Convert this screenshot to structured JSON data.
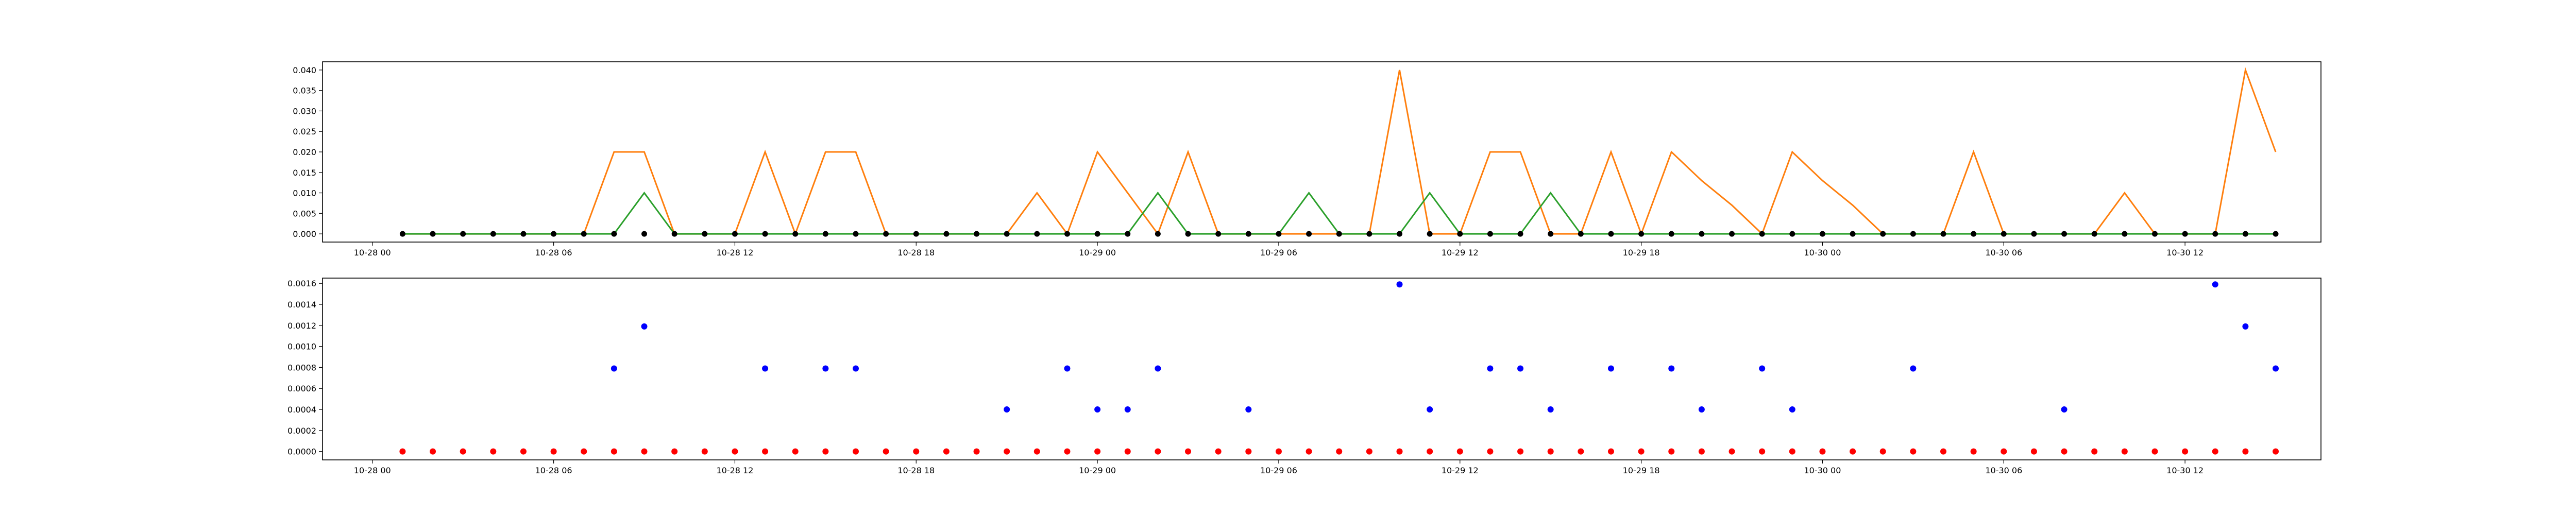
{
  "chart_data": [
    {
      "type": "line",
      "title": "",
      "xlabel": "",
      "ylabel": "",
      "x_tick_labels": [
        "10-28 00",
        "10-28 06",
        "10-28 12",
        "10-28 18",
        "10-29 00",
        "10-29 06",
        "10-29 12",
        "10-29 18",
        "10-30 00",
        "10-30 06",
        "10-30 12"
      ],
      "y_tick_labels": [
        "0.000",
        "0.005",
        "0.010",
        "0.015",
        "0.020",
        "0.025",
        "0.030",
        "0.035",
        "0.040"
      ],
      "xlim_hours": [
        -1.65,
        64.5
      ],
      "ylim": [
        -0.002,
        0.042
      ],
      "grid": false,
      "x_hours": [
        1,
        2,
        3,
        4,
        5,
        6,
        7,
        8,
        9,
        10,
        11,
        12,
        13,
        14,
        15,
        16,
        17,
        18,
        19,
        20,
        21,
        22,
        23,
        24,
        25,
        26,
        27,
        28,
        29,
        30,
        31,
        32,
        33,
        34,
        35,
        36,
        37,
        38,
        39,
        40,
        41,
        42,
        43,
        44,
        45,
        46,
        47,
        48,
        49,
        50,
        51,
        52,
        53,
        54,
        55,
        56,
        57,
        58,
        59,
        60,
        61,
        62,
        63
      ],
      "series": [
        {
          "color": "#ff7f0e",
          "style": "line",
          "values": [
            0,
            0,
            0,
            0,
            0,
            0,
            0,
            0.02,
            0.02,
            0,
            0,
            0,
            0.02,
            0,
            0.02,
            0.02,
            0,
            0,
            0,
            0,
            0,
            0.01,
            0,
            0.02,
            0.01,
            0,
            0.02,
            0,
            0,
            0,
            0,
            0,
            0,
            0.04,
            0,
            0,
            0.02,
            0.02,
            0,
            0,
            0.02,
            0,
            0.02,
            0.013,
            0.007,
            0,
            0.02,
            0.013,
            0.007,
            0,
            0,
            0,
            0.02,
            0,
            0,
            0,
            0,
            0.01,
            0,
            0,
            0,
            0.04,
            0.02
          ]
        },
        {
          "color": "#2ca02c",
          "style": "line",
          "values": [
            0,
            0,
            0,
            0,
            0,
            0,
            0,
            0,
            0.01,
            0,
            0,
            0,
            0,
            0,
            0,
            0,
            0,
            0,
            0,
            0,
            0,
            0,
            0,
            0,
            0,
            0.01,
            0,
            0,
            0,
            0,
            0.01,
            0,
            0,
            0,
            0.01,
            0,
            0,
            0,
            0.01,
            0,
            0,
            0,
            0,
            0,
            0,
            0,
            0,
            0,
            0,
            0,
            0,
            0,
            0,
            0,
            0,
            0,
            0,
            0,
            0,
            0,
            0,
            0,
            0
          ]
        },
        {
          "color": "#000000",
          "style": "markers",
          "values": [
            0,
            0,
            0,
            0,
            0,
            0,
            0,
            0,
            0,
            0,
            0,
            0,
            0,
            0,
            0,
            0,
            0,
            0,
            0,
            0,
            0,
            0,
            0,
            0,
            0,
            0,
            0,
            0,
            0,
            0,
            0,
            0,
            0,
            0,
            0,
            0,
            0,
            0,
            0,
            0,
            0,
            0,
            0,
            0,
            0,
            0,
            0,
            0,
            0,
            0,
            0,
            0,
            0,
            0,
            0,
            0,
            0,
            0,
            0,
            0,
            0,
            0,
            0
          ]
        }
      ]
    },
    {
      "type": "scatter",
      "title": "",
      "xlabel": "",
      "ylabel": "",
      "x_tick_labels": [
        "10-28 00",
        "10-28 06",
        "10-28 12",
        "10-28 18",
        "10-29 00",
        "10-29 06",
        "10-29 12",
        "10-29 18",
        "10-30 00",
        "10-30 06",
        "10-30 12"
      ],
      "y_tick_labels": [
        "0.0000",
        "0.0002",
        "0.0004",
        "0.0006",
        "0.0008",
        "0.0010",
        "0.0012",
        "0.0014",
        "0.0016"
      ],
      "xlim_hours": [
        -1.65,
        64.5
      ],
      "ylim": [
        -8e-05,
        0.00165
      ],
      "grid": false,
      "x_hours": [
        1,
        2,
        3,
        4,
        5,
        6,
        7,
        8,
        9,
        10,
        11,
        12,
        13,
        14,
        15,
        16,
        17,
        18,
        19,
        20,
        21,
        22,
        23,
        24,
        25,
        26,
        27,
        28,
        29,
        30,
        31,
        32,
        33,
        34,
        35,
        36,
        37,
        38,
        39,
        40,
        41,
        42,
        43,
        44,
        45,
        46,
        47,
        48,
        49,
        50,
        51,
        52,
        53,
        54,
        55,
        56,
        57,
        58,
        59,
        60,
        61,
        62,
        63
      ],
      "series": [
        {
          "color": "#0000ff",
          "points": [
            [
              8,
              0.00079
            ],
            [
              9,
              0.00119
            ],
            [
              13,
              0.00079
            ],
            [
              15,
              0.00079
            ],
            [
              16,
              0.00079
            ],
            [
              21,
              0.0004
            ],
            [
              23,
              0.00079
            ],
            [
              24,
              0.0004
            ],
            [
              25,
              0.0004
            ],
            [
              26,
              0.00079
            ],
            [
              29,
              0.0004
            ],
            [
              34,
              0.00159
            ],
            [
              35,
              0.0004
            ],
            [
              37,
              0.00079
            ],
            [
              38,
              0.00079
            ],
            [
              39,
              0.0004
            ],
            [
              41,
              0.00079
            ],
            [
              43,
              0.00079
            ],
            [
              44,
              0.0004
            ],
            [
              46,
              0.00079
            ],
            [
              47,
              0.0004
            ],
            [
              51,
              0.00079
            ],
            [
              56,
              0.0004
            ],
            [
              61,
              0.00159
            ],
            [
              62,
              0.00119
            ],
            [
              63,
              0.00079
            ]
          ]
        },
        {
          "color": "#ff0000",
          "points": [
            [
              1,
              0
            ],
            [
              2,
              0
            ],
            [
              3,
              0
            ],
            [
              4,
              0
            ],
            [
              5,
              0
            ],
            [
              6,
              0
            ],
            [
              7,
              0
            ],
            [
              8,
              0
            ],
            [
              9,
              0
            ],
            [
              10,
              0
            ],
            [
              11,
              0
            ],
            [
              12,
              0
            ],
            [
              13,
              0
            ],
            [
              14,
              0
            ],
            [
              15,
              0
            ],
            [
              16,
              0
            ],
            [
              17,
              0
            ],
            [
              18,
              0
            ],
            [
              19,
              0
            ],
            [
              20,
              0
            ],
            [
              21,
              0
            ],
            [
              22,
              0
            ],
            [
              23,
              0
            ],
            [
              24,
              0
            ],
            [
              25,
              0
            ],
            [
              26,
              0
            ],
            [
              27,
              0
            ],
            [
              28,
              0
            ],
            [
              29,
              0
            ],
            [
              30,
              0
            ],
            [
              31,
              0
            ],
            [
              32,
              0
            ],
            [
              33,
              0
            ],
            [
              34,
              0
            ],
            [
              35,
              0
            ],
            [
              36,
              0
            ],
            [
              37,
              0
            ],
            [
              38,
              0
            ],
            [
              39,
              0
            ],
            [
              40,
              0
            ],
            [
              41,
              0
            ],
            [
              42,
              0
            ],
            [
              43,
              0
            ],
            [
              44,
              0
            ],
            [
              45,
              0
            ],
            [
              46,
              0
            ],
            [
              47,
              0
            ],
            [
              48,
              0
            ],
            [
              49,
              0
            ],
            [
              50,
              0
            ],
            [
              51,
              0
            ],
            [
              52,
              0
            ],
            [
              53,
              0
            ],
            [
              54,
              0
            ],
            [
              55,
              0
            ],
            [
              56,
              0
            ],
            [
              57,
              0
            ],
            [
              58,
              0
            ],
            [
              59,
              0
            ],
            [
              60,
              0
            ],
            [
              61,
              0
            ],
            [
              62,
              0
            ],
            [
              63,
              0
            ]
          ]
        }
      ]
    }
  ]
}
